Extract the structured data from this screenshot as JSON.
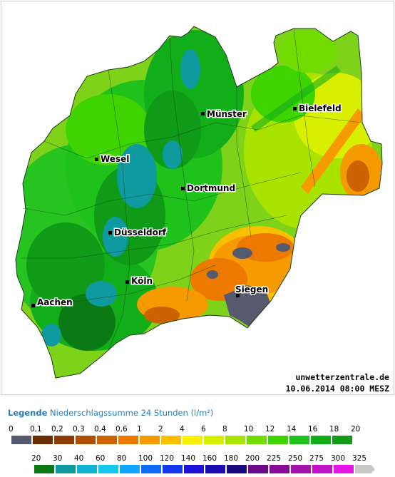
{
  "map": {
    "cities": [
      {
        "name": "Münster"
      },
      {
        "name": "Bielefeld"
      },
      {
        "name": "Wesel"
      },
      {
        "name": "Dortmund"
      },
      {
        "name": "Düsseldorf"
      },
      {
        "name": "Köln"
      },
      {
        "name": "Siegen"
      },
      {
        "name": "Aachen"
      }
    ],
    "credit_site": "unwetterzentrale.de",
    "credit_date": "10.06.2014 08:00 MESZ"
  },
  "legend": {
    "title_bold": "Legende",
    "title_rest": " Niederschlagssumme 24 Stunden  (l/m²)",
    "row1_labels": [
      "0",
      "0,1",
      "0,2",
      "0,3",
      "0,4",
      "0,6",
      "1",
      "2",
      "4",
      "6",
      "8",
      "10",
      "12",
      "14",
      "16",
      "18",
      "20"
    ],
    "row1_colors": [
      "#555a6e",
      "#6b2c00",
      "#8c3c00",
      "#b04d00",
      "#cc6200",
      "#ec7a00",
      "#f59a00",
      "#f9c000",
      "#f8f000",
      "#d8f000",
      "#a8e400",
      "#72dc00",
      "#3fd400",
      "#1ec21a",
      "#12ae1a",
      "#0f9a18"
    ],
    "row2_labels": [
      "20",
      "30",
      "40",
      "60",
      "80",
      "100",
      "120",
      "140",
      "160",
      "180",
      "200",
      "225",
      "250",
      "275",
      "300",
      "325"
    ],
    "row2_colors": [
      "#0b7a14",
      "#0f9aa0",
      "#12b4d4",
      "#14c8f0",
      "#12a6ff",
      "#0e6cf8",
      "#1438f0",
      "#1a10d8",
      "#1a0cb0",
      "#1a0a80",
      "#6a0a8a",
      "#8a0a9a",
      "#a412ac",
      "#c012c8",
      "#e614e4",
      "#c8c8c8"
    ]
  }
}
